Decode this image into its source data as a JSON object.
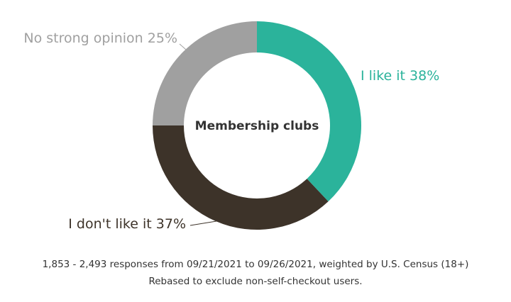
{
  "chart_data": {
    "type": "donut",
    "title": "Membership clubs",
    "categories": [
      "I like it",
      "I don't like it",
      "No strong opinion"
    ],
    "values": [
      38,
      37,
      25
    ],
    "value_labels": [
      "38%",
      "37%",
      "25%"
    ],
    "colors": [
      "#2bb39b",
      "#3d3329",
      "#a0a0a0"
    ],
    "notes": [
      "1,853 - 2,493 responses from 09/21/2021 to 09/26/2021, weighted by U.S. Census (18+)",
      "Rebased to exclude non-self-checkout users."
    ]
  }
}
